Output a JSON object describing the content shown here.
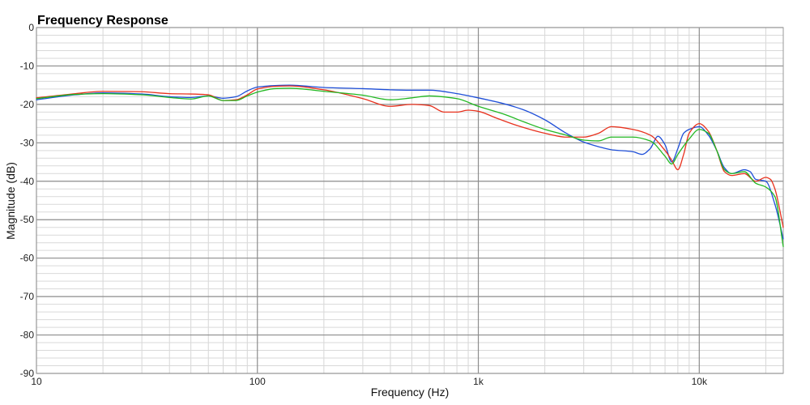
{
  "chart_data": {
    "type": "line",
    "title": "Frequency Response",
    "xlabel": "Frequency (Hz)",
    "ylabel": "Magnitude (dB)",
    "x_scale": "log",
    "xlim": [
      10,
      24000
    ],
    "ylim": [
      -90,
      0
    ],
    "grid": true,
    "x_ticks": [
      {
        "value": 10,
        "label": "10"
      },
      {
        "value": 100,
        "label": "100"
      },
      {
        "value": 1000,
        "label": "1k"
      },
      {
        "value": 10000,
        "label": "10k"
      }
    ],
    "y_ticks": [
      {
        "value": 0,
        "label": "0"
      },
      {
        "value": -10,
        "label": "-10"
      },
      {
        "value": -20,
        "label": "-20"
      },
      {
        "value": -30,
        "label": "-30"
      },
      {
        "value": -40,
        "label": "-40"
      },
      {
        "value": -50,
        "label": "-50"
      },
      {
        "value": -60,
        "label": "-60"
      },
      {
        "value": -70,
        "label": "-70"
      },
      {
        "value": -80,
        "label": "-80"
      },
      {
        "value": -90,
        "label": "-90"
      }
    ],
    "series": [
      {
        "color": "#1f4fd8",
        "points": [
          [
            10,
            -18.8
          ],
          [
            15,
            -17.5
          ],
          [
            20,
            -17.0
          ],
          [
            30,
            -17.3
          ],
          [
            40,
            -18.0
          ],
          [
            50,
            -18.2
          ],
          [
            60,
            -17.8
          ],
          [
            70,
            -18.4
          ],
          [
            80,
            -18.0
          ],
          [
            90,
            -16.5
          ],
          [
            100,
            -15.5
          ],
          [
            120,
            -15.1
          ],
          [
            140,
            -15.0
          ],
          [
            200,
            -15.6
          ],
          [
            300,
            -15.9
          ],
          [
            400,
            -16.2
          ],
          [
            500,
            -16.3
          ],
          [
            600,
            -16.3
          ],
          [
            800,
            -17.2
          ],
          [
            1000,
            -18.3
          ],
          [
            1300,
            -19.8
          ],
          [
            1600,
            -21.4
          ],
          [
            2000,
            -24.0
          ],
          [
            2500,
            -27.5
          ],
          [
            3000,
            -29.8
          ],
          [
            3500,
            -31.0
          ],
          [
            4000,
            -31.8
          ],
          [
            5000,
            -32.3
          ],
          [
            5500,
            -33.0
          ],
          [
            6000,
            -31.5
          ],
          [
            6500,
            -28.3
          ],
          [
            7000,
            -30.5
          ],
          [
            7500,
            -35.0
          ],
          [
            8000,
            -31.5
          ],
          [
            8500,
            -27.5
          ],
          [
            9000,
            -26.5
          ],
          [
            10000,
            -25.8
          ],
          [
            11000,
            -28.0
          ],
          [
            12000,
            -32.0
          ],
          [
            13000,
            -36.5
          ],
          [
            14000,
            -38.0
          ],
          [
            16000,
            -37.0
          ],
          [
            17000,
            -37.5
          ],
          [
            18000,
            -39.5
          ],
          [
            20000,
            -40.0
          ],
          [
            22000,
            -46.0
          ],
          [
            24000,
            -55.0
          ]
        ]
      },
      {
        "color": "#e8321e",
        "points": [
          [
            10,
            -18.3
          ],
          [
            15,
            -17.2
          ],
          [
            20,
            -16.6
          ],
          [
            30,
            -16.7
          ],
          [
            40,
            -17.2
          ],
          [
            50,
            -17.3
          ],
          [
            60,
            -17.5
          ],
          [
            70,
            -19.0
          ],
          [
            80,
            -18.8
          ],
          [
            90,
            -17.5
          ],
          [
            100,
            -16.0
          ],
          [
            120,
            -15.3
          ],
          [
            140,
            -15.2
          ],
          [
            200,
            -16.2
          ],
          [
            300,
            -18.5
          ],
          [
            400,
            -20.5
          ],
          [
            500,
            -20.0
          ],
          [
            600,
            -20.3
          ],
          [
            700,
            -22.0
          ],
          [
            800,
            -22.0
          ],
          [
            900,
            -21.5
          ],
          [
            1000,
            -21.8
          ],
          [
            1200,
            -23.5
          ],
          [
            1500,
            -25.5
          ],
          [
            2000,
            -27.5
          ],
          [
            2500,
            -28.5
          ],
          [
            3000,
            -28.5
          ],
          [
            3500,
            -27.5
          ],
          [
            4000,
            -25.8
          ],
          [
            5000,
            -26.5
          ],
          [
            6000,
            -28.0
          ],
          [
            7000,
            -32.0
          ],
          [
            7500,
            -34.5
          ],
          [
            8000,
            -37.0
          ],
          [
            8500,
            -33.0
          ],
          [
            9000,
            -27.5
          ],
          [
            10000,
            -25.0
          ],
          [
            11000,
            -27.0
          ],
          [
            12000,
            -32.0
          ],
          [
            13000,
            -37.5
          ],
          [
            14000,
            -38.5
          ],
          [
            16000,
            -38.0
          ],
          [
            18000,
            -40.0
          ],
          [
            20000,
            -39.0
          ],
          [
            21000,
            -39.5
          ],
          [
            22000,
            -42.0
          ],
          [
            24000,
            -52.0
          ]
        ]
      },
      {
        "color": "#22b822",
        "points": [
          [
            10,
            -18.5
          ],
          [
            15,
            -17.4
          ],
          [
            20,
            -17.2
          ],
          [
            30,
            -17.5
          ],
          [
            40,
            -18.2
          ],
          [
            50,
            -18.6
          ],
          [
            60,
            -17.8
          ],
          [
            70,
            -19.0
          ],
          [
            80,
            -19.0
          ],
          [
            90,
            -17.8
          ],
          [
            100,
            -16.8
          ],
          [
            120,
            -15.9
          ],
          [
            140,
            -15.8
          ],
          [
            200,
            -16.6
          ],
          [
            300,
            -17.6
          ],
          [
            400,
            -18.8
          ],
          [
            500,
            -18.3
          ],
          [
            600,
            -17.8
          ],
          [
            800,
            -18.5
          ],
          [
            1000,
            -20.5
          ],
          [
            1300,
            -22.5
          ],
          [
            1600,
            -24.5
          ],
          [
            2000,
            -26.5
          ],
          [
            2500,
            -28.0
          ],
          [
            3000,
            -29.3
          ],
          [
            3500,
            -29.5
          ],
          [
            4000,
            -28.5
          ],
          [
            5000,
            -28.5
          ],
          [
            6000,
            -29.5
          ],
          [
            7000,
            -33.5
          ],
          [
            7500,
            -35.5
          ],
          [
            8000,
            -33.0
          ],
          [
            9000,
            -29.0
          ],
          [
            10000,
            -26.5
          ],
          [
            11000,
            -27.5
          ],
          [
            12000,
            -32.0
          ],
          [
            13000,
            -37.0
          ],
          [
            14000,
            -38.0
          ],
          [
            16000,
            -37.5
          ],
          [
            18000,
            -40.5
          ],
          [
            20000,
            -41.5
          ],
          [
            22000,
            -44.0
          ],
          [
            24000,
            -57.0
          ]
        ]
      }
    ]
  }
}
